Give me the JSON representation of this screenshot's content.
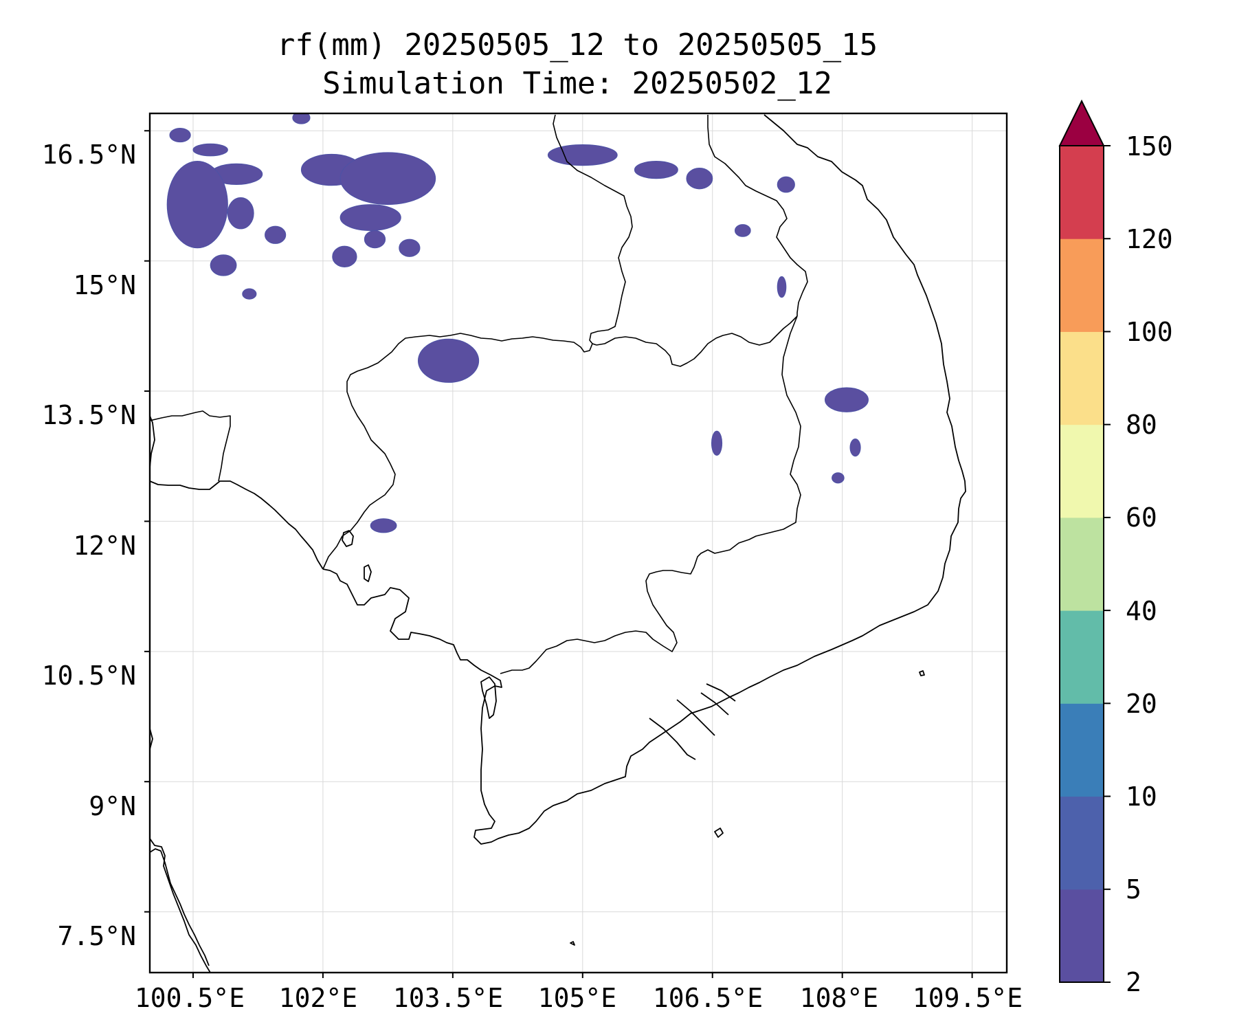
{
  "figure": {
    "title_line1": "rf(mm) 20250505_12 to 20250505_15",
    "title_line2": "Simulation Time: 20250502_12"
  },
  "chart_data": {
    "type": "heatmap",
    "variable": "rf(mm)",
    "x_axis": {
      "range_lon": [
        100.0,
        109.9
      ],
      "ticks": [
        100.5,
        102,
        103.5,
        105,
        106.5,
        108,
        109.5
      ],
      "tick_labels": [
        "100.5°E",
        "102°E",
        "103.5°E",
        "105°E",
        "106.5°E",
        "108°E",
        "109.5°E"
      ]
    },
    "y_axis": {
      "range_lat": [
        6.8,
        16.7
      ],
      "ticks": [
        16.5,
        15,
        13.5,
        12,
        10.5,
        9,
        7.5
      ],
      "tick_labels": [
        "16.5°N",
        "15°N",
        "13.5°N",
        "12°N",
        "10.5°N",
        "9°N",
        "7.5°N"
      ]
    },
    "grid": true,
    "colorbar": {
      "levels": [
        2,
        5,
        10,
        20,
        40,
        60,
        80,
        100,
        120,
        150
      ],
      "level_labels": [
        "2",
        "5",
        "10",
        "20",
        "40",
        "60",
        "80",
        "100",
        "120",
        "150"
      ],
      "colors": [
        "#5a4fa0",
        "#4d61ac",
        "#3a7eb8",
        "#62bca9",
        "#bde2a0",
        "#f0f8ae",
        "#fbdf8a",
        "#f89c59",
        "#d43e4f"
      ],
      "extend_color": "#9b0041",
      "extend": "max"
    },
    "rain_areas": [
      {
        "lon": 100.35,
        "lat": 16.45,
        "rx": 0.12,
        "ry": 0.08
      },
      {
        "lon": 100.7,
        "lat": 16.28,
        "rx": 0.2,
        "ry": 0.07
      },
      {
        "lon": 101.0,
        "lat": 16.0,
        "rx": 0.3,
        "ry": 0.12
      },
      {
        "lon": 100.55,
        "lat": 15.65,
        "rx": 0.35,
        "ry": 0.5
      },
      {
        "lon": 100.85,
        "lat": 14.95,
        "rx": 0.15,
        "ry": 0.12
      },
      {
        "lon": 101.05,
        "lat": 15.55,
        "rx": 0.15,
        "ry": 0.18
      },
      {
        "lon": 101.45,
        "lat": 15.3,
        "rx": 0.12,
        "ry": 0.1
      },
      {
        "lon": 102.1,
        "lat": 16.05,
        "rx": 0.35,
        "ry": 0.18
      },
      {
        "lon": 102.75,
        "lat": 15.95,
        "rx": 0.55,
        "ry": 0.3
      },
      {
        "lon": 102.55,
        "lat": 15.5,
        "rx": 0.35,
        "ry": 0.15
      },
      {
        "lon": 102.25,
        "lat": 15.05,
        "rx": 0.14,
        "ry": 0.12
      },
      {
        "lon": 102.6,
        "lat": 15.25,
        "rx": 0.12,
        "ry": 0.1
      },
      {
        "lon": 103.0,
        "lat": 15.15,
        "rx": 0.12,
        "ry": 0.1
      },
      {
        "lon": 101.75,
        "lat": 16.65,
        "rx": 0.1,
        "ry": 0.07
      },
      {
        "lon": 101.15,
        "lat": 14.62,
        "rx": 0.08,
        "ry": 0.06
      },
      {
        "lon": 105.0,
        "lat": 16.22,
        "rx": 0.4,
        "ry": 0.12
      },
      {
        "lon": 105.85,
        "lat": 16.05,
        "rx": 0.25,
        "ry": 0.1
      },
      {
        "lon": 106.35,
        "lat": 15.95,
        "rx": 0.15,
        "ry": 0.12
      },
      {
        "lon": 107.35,
        "lat": 15.88,
        "rx": 0.1,
        "ry": 0.09
      },
      {
        "lon": 106.85,
        "lat": 15.35,
        "rx": 0.09,
        "ry": 0.07
      },
      {
        "lon": 103.45,
        "lat": 13.85,
        "rx": 0.35,
        "ry": 0.25
      },
      {
        "lon": 108.05,
        "lat": 13.4,
        "rx": 0.25,
        "ry": 0.14
      },
      {
        "lon": 106.55,
        "lat": 12.9,
        "rx": 0.06,
        "ry": 0.14
      },
      {
        "lon": 108.15,
        "lat": 12.85,
        "rx": 0.06,
        "ry": 0.1
      },
      {
        "lon": 107.95,
        "lat": 12.5,
        "rx": 0.07,
        "ry": 0.06
      },
      {
        "lon": 102.7,
        "lat": 11.95,
        "rx": 0.15,
        "ry": 0.08
      },
      {
        "lon": 107.3,
        "lat": 14.7,
        "rx": 0.05,
        "ry": 0.12
      }
    ]
  }
}
